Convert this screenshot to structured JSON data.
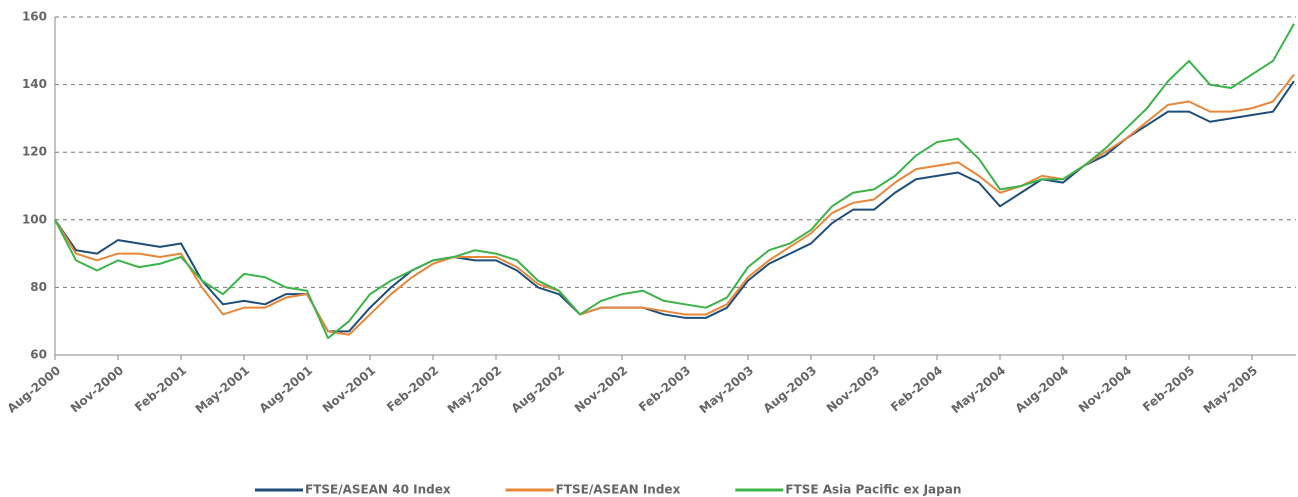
{
  "chart_data": {
    "type": "line",
    "categories": [
      "Aug-2000",
      null,
      null,
      "Nov-2000",
      null,
      null,
      "Feb-2001",
      null,
      null,
      "May-2001",
      null,
      null,
      "Aug-2001",
      null,
      null,
      "Nov-2001",
      null,
      null,
      "Feb-2002",
      null,
      null,
      "May-2002",
      null,
      null,
      "Aug-2002",
      null,
      null,
      "Nov-2002",
      null,
      null,
      "Feb-2003",
      null,
      null,
      "May-2003",
      null,
      null,
      "Aug-2003",
      null,
      null,
      "Nov-2003",
      null,
      null,
      "Feb-2004",
      null,
      null,
      "May-2004",
      null,
      null,
      "Aug-2004",
      null,
      null,
      "Nov-2004",
      null,
      null,
      "Feb-2005",
      null,
      null,
      "May-2005",
      null,
      null
    ],
    "series": [
      {
        "name": "FTSE/ASEAN 40 Index",
        "color": "#1f4e79",
        "values": [
          100,
          91,
          90,
          94,
          93,
          92,
          93,
          82,
          75,
          76,
          75,
          78,
          78,
          67,
          67,
          74,
          80,
          85,
          88,
          89,
          88,
          88,
          85,
          80,
          78,
          72,
          74,
          74,
          74,
          72,
          71,
          71,
          74,
          82,
          87,
          90,
          93,
          99,
          103,
          103,
          108,
          112,
          113,
          114,
          111,
          104,
          108,
          112,
          111,
          116,
          119,
          124,
          128,
          132,
          132,
          129,
          130,
          131,
          132,
          141
        ]
      },
      {
        "name": "FTSE/ASEAN Index",
        "color": "#e8873a",
        "values": [
          100,
          90,
          88,
          90,
          90,
          89,
          90,
          80,
          72,
          74,
          74,
          77,
          78,
          67,
          66,
          72,
          78,
          83,
          87,
          89,
          89,
          89,
          86,
          81,
          79,
          72,
          74,
          74,
          74,
          73,
          72,
          72,
          75,
          83,
          88,
          92,
          96,
          102,
          105,
          106,
          111,
          115,
          116,
          117,
          113,
          108,
          110,
          113,
          112,
          116,
          120,
          124,
          129,
          134,
          135,
          132,
          132,
          133,
          135,
          143
        ]
      },
      {
        "name": "FTSE Asia Pacific ex Japan",
        "color": "#3cb44a",
        "values": [
          100,
          88,
          85,
          88,
          86,
          87,
          89,
          82,
          78,
          84,
          83,
          80,
          79,
          65,
          70,
          78,
          82,
          85,
          88,
          89,
          91,
          90,
          88,
          82,
          79,
          72,
          76,
          78,
          79,
          76,
          75,
          74,
          77,
          86,
          91,
          93,
          97,
          104,
          108,
          109,
          113,
          119,
          123,
          124,
          118,
          109,
          110,
          112,
          112,
          116,
          121,
          127,
          133,
          141,
          147,
          140,
          139,
          143,
          147,
          158
        ]
      }
    ],
    "ylim": [
      60,
      160
    ],
    "yticks": [
      60,
      80,
      100,
      120,
      140,
      160
    ],
    "grid": true
  }
}
